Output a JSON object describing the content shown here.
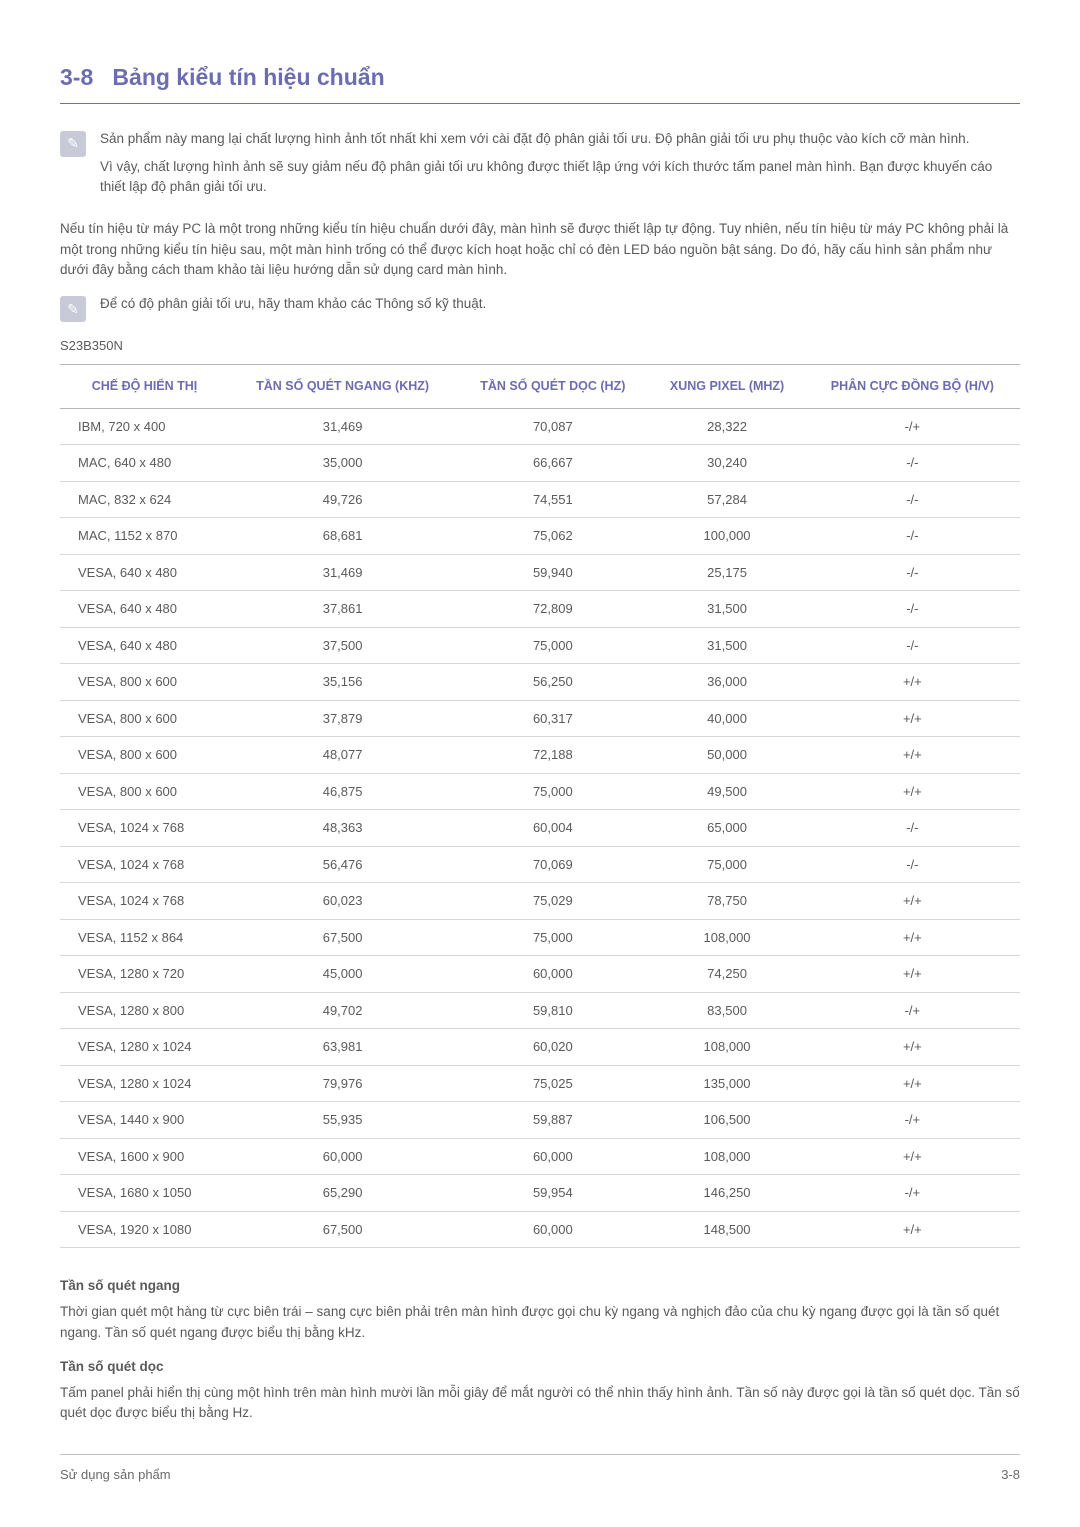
{
  "section_number": "3-8",
  "section_title": "Bảng kiểu tín hiệu chuẩn",
  "footer_left": "Sử dụng sản phẩm",
  "footer_right": "3-8",
  "note1_p1": "Sản phẩm này mang lại chất lượng hình ảnh tốt nhất khi xem với cài đặt độ phân giải tối ưu. Độ phân giải tối ưu phụ thuộc vào kích cỡ màn hình.",
  "note1_p2": "Vì vậy, chất lượng hình ảnh sẽ suy giảm nếu độ phân giải tối ưu không được thiết lập ứng với kích thước tấm panel màn hình. Bạn được khuyến cáo thiết lập độ phân giải tối ưu.",
  "para1": "Nếu tín hiệu từ máy PC là một trong những kiểu tín hiệu chuẩn dưới đây, màn hình sẽ được thiết lập tự động. Tuy nhiên, nếu tín hiệu từ máy PC không phải là một trong những kiểu tín hiệu sau, một màn hình trống có thể được kích hoạt hoặc chỉ có đèn LED báo nguồn bật sáng. Do đó, hãy cấu hình sản phẩm như dưới đây bằng cách tham khảo tài liệu hướng dẫn sử dụng card màn hình.",
  "note2": "Để có độ phân giải tối ưu, hãy tham khảo các Thông số kỹ thuật.",
  "model": "S23B350N",
  "table": {
    "headers": [
      "CHẾ ĐỘ HIỂN THỊ",
      "TẦN SỐ QUÉT NGANG (KHZ)",
      "TẦN SỐ QUÉT DỌC (HZ)",
      "XUNG PIXEL (MHZ)",
      "PHÂN CỰC ĐỒNG BỘ (H/V)"
    ],
    "rows": [
      [
        "IBM, 720 x 400",
        "31,469",
        "70,087",
        "28,322",
        "-/+"
      ],
      [
        "MAC, 640 x 480",
        "35,000",
        "66,667",
        "30,240",
        "-/-"
      ],
      [
        "MAC, 832 x 624",
        "49,726",
        "74,551",
        "57,284",
        "-/-"
      ],
      [
        "MAC, 1152 x 870",
        "68,681",
        "75,062",
        "100,000",
        "-/-"
      ],
      [
        "VESA, 640 x 480",
        "31,469",
        "59,940",
        "25,175",
        "-/-"
      ],
      [
        "VESA, 640 x 480",
        "37,861",
        "72,809",
        "31,500",
        "-/-"
      ],
      [
        "VESA, 640 x 480",
        "37,500",
        "75,000",
        "31,500",
        "-/-"
      ],
      [
        "VESA, 800 x 600",
        "35,156",
        "56,250",
        "36,000",
        "+/+"
      ],
      [
        "VESA, 800 x 600",
        "37,879",
        "60,317",
        "40,000",
        "+/+"
      ],
      [
        "VESA, 800 x 600",
        "48,077",
        "72,188",
        "50,000",
        "+/+"
      ],
      [
        "VESA, 800 x 600",
        "46,875",
        "75,000",
        "49,500",
        "+/+"
      ],
      [
        "VESA, 1024 x 768",
        "48,363",
        "60,004",
        "65,000",
        "-/-"
      ],
      [
        "VESA, 1024 x 768",
        "56,476",
        "70,069",
        "75,000",
        "-/-"
      ],
      [
        "VESA, 1024 x 768",
        "60,023",
        "75,029",
        "78,750",
        "+/+"
      ],
      [
        "VESA, 1152 x 864",
        "67,500",
        "75,000",
        "108,000",
        "+/+"
      ],
      [
        "VESA, 1280 x 720",
        "45,000",
        "60,000",
        "74,250",
        "+/+"
      ],
      [
        "VESA, 1280 x 800",
        "49,702",
        "59,810",
        "83,500",
        "-/+"
      ],
      [
        "VESA, 1280 x 1024",
        "63,981",
        "60,020",
        "108,000",
        "+/+"
      ],
      [
        "VESA, 1280 x 1024",
        "79,976",
        "75,025",
        "135,000",
        "+/+"
      ],
      [
        "VESA, 1440 x 900",
        "55,935",
        "59,887",
        "106,500",
        "-/+"
      ],
      [
        "VESA, 1600 x 900",
        "60,000",
        "60,000",
        "108,000",
        "+/+"
      ],
      [
        "VESA, 1680 x 1050",
        "65,290",
        "59,954",
        "146,250",
        "-/+"
      ],
      [
        "VESA, 1920 x 1080",
        "67,500",
        "60,000",
        "148,500",
        "+/+"
      ]
    ]
  },
  "def1_title": "Tần số quét ngang",
  "def1_body": "Thời gian quét một hàng từ cực biên trái – sang cực biên phải trên màn hình được gọi chu kỳ ngang và nghịch đảo của chu kỳ ngang được gọi là tần số quét ngang. Tần số quét ngang được biểu thị bằng kHz.",
  "def2_title": "Tần số quét dọc",
  "def2_body": "Tấm panel phải hiển thị cùng một hình trên màn hình mười lần mỗi giây để mắt người có thể nhìn thấy hình ảnh. Tần số này được gọi là tần số quét dọc. Tần số quét dọc được biểu thị bằng Hz."
}
